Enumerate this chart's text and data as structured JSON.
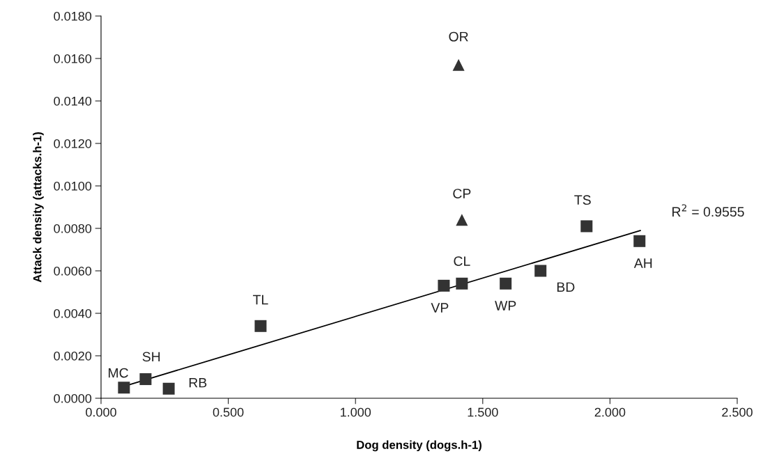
{
  "chart_data": {
    "type": "scatter",
    "xlabel": "Dog density (dogs.h-1)",
    "ylabel": "Attack density (attacks.h-1)",
    "xlim": [
      0,
      2.5
    ],
    "ylim": [
      0,
      0.018
    ],
    "xticks": [
      {
        "value": 0,
        "label": "0.000"
      },
      {
        "value": 0.5,
        "label": "0.500"
      },
      {
        "value": 1.0,
        "label": "1.000"
      },
      {
        "value": 1.5,
        "label": "1.500"
      },
      {
        "value": 2.0,
        "label": "2.000"
      },
      {
        "value": 2.5,
        "label": "2.500"
      }
    ],
    "yticks": [
      {
        "value": 0,
        "label": "0.0000"
      },
      {
        "value": 0.002,
        "label": "0.0020"
      },
      {
        "value": 0.004,
        "label": "0.0040"
      },
      {
        "value": 0.006,
        "label": "0.0060"
      },
      {
        "value": 0.008,
        "label": "0.0080"
      },
      {
        "value": 0.01,
        "label": "0.0100"
      },
      {
        "value": 0.012,
        "label": "0.0120"
      },
      {
        "value": 0.014,
        "label": "0.0140"
      },
      {
        "value": 0.016,
        "label": "0.0160"
      },
      {
        "value": 0.018,
        "label": "0.0180"
      }
    ],
    "grid": false,
    "legend": false,
    "series": [
      {
        "marker": "square",
        "color": "#333333",
        "x": [
          0.09,
          0.175,
          0.266,
          0.627,
          1.347,
          1.418,
          1.59,
          1.727,
          1.908,
          2.116
        ],
        "values": [
          0.0005,
          0.0009,
          0.00045,
          0.0034,
          0.0053,
          0.0054,
          0.0054,
          0.006,
          0.0081,
          0.0074
        ]
      },
      {
        "marker": "triangle",
        "color": "#333333",
        "x": [
          1.418,
          1.405
        ],
        "values": [
          0.0084,
          0.0157
        ]
      },
      {
        "type": "line",
        "marker": "none",
        "line_style": "solid",
        "color": "#000000",
        "x": [
          0.09,
          2.119
        ],
        "values": [
          0.00056,
          0.0079
        ]
      }
    ],
    "annotations": [
      {
        "text": "MC",
        "x": 0.09,
        "y": 0.0005
      },
      {
        "text": "SH",
        "x": 0.175,
        "y": 0.0009
      },
      {
        "text": "RB",
        "x": 0.266,
        "y": 0.00045
      },
      {
        "text": "TL",
        "x": 0.627,
        "y": 0.0034
      },
      {
        "text": "VP",
        "x": 1.347,
        "y": 0.0053
      },
      {
        "text": "CL",
        "x": 1.418,
        "y": 0.0054
      },
      {
        "text": "WP",
        "x": 1.59,
        "y": 0.0054
      },
      {
        "text": "BD",
        "x": 1.727,
        "y": 0.006
      },
      {
        "text": "TS",
        "x": 1.908,
        "y": 0.0081
      },
      {
        "text": "AH",
        "x": 2.116,
        "y": 0.0074
      },
      {
        "text": "CP",
        "x": 1.418,
        "y": 0.0084
      },
      {
        "text": "OR",
        "x": 1.405,
        "y": 0.0157
      },
      {
        "text": "R$^{2}$ = 0.9555",
        "x": 2.119,
        "y": 0.0079
      }
    ]
  }
}
